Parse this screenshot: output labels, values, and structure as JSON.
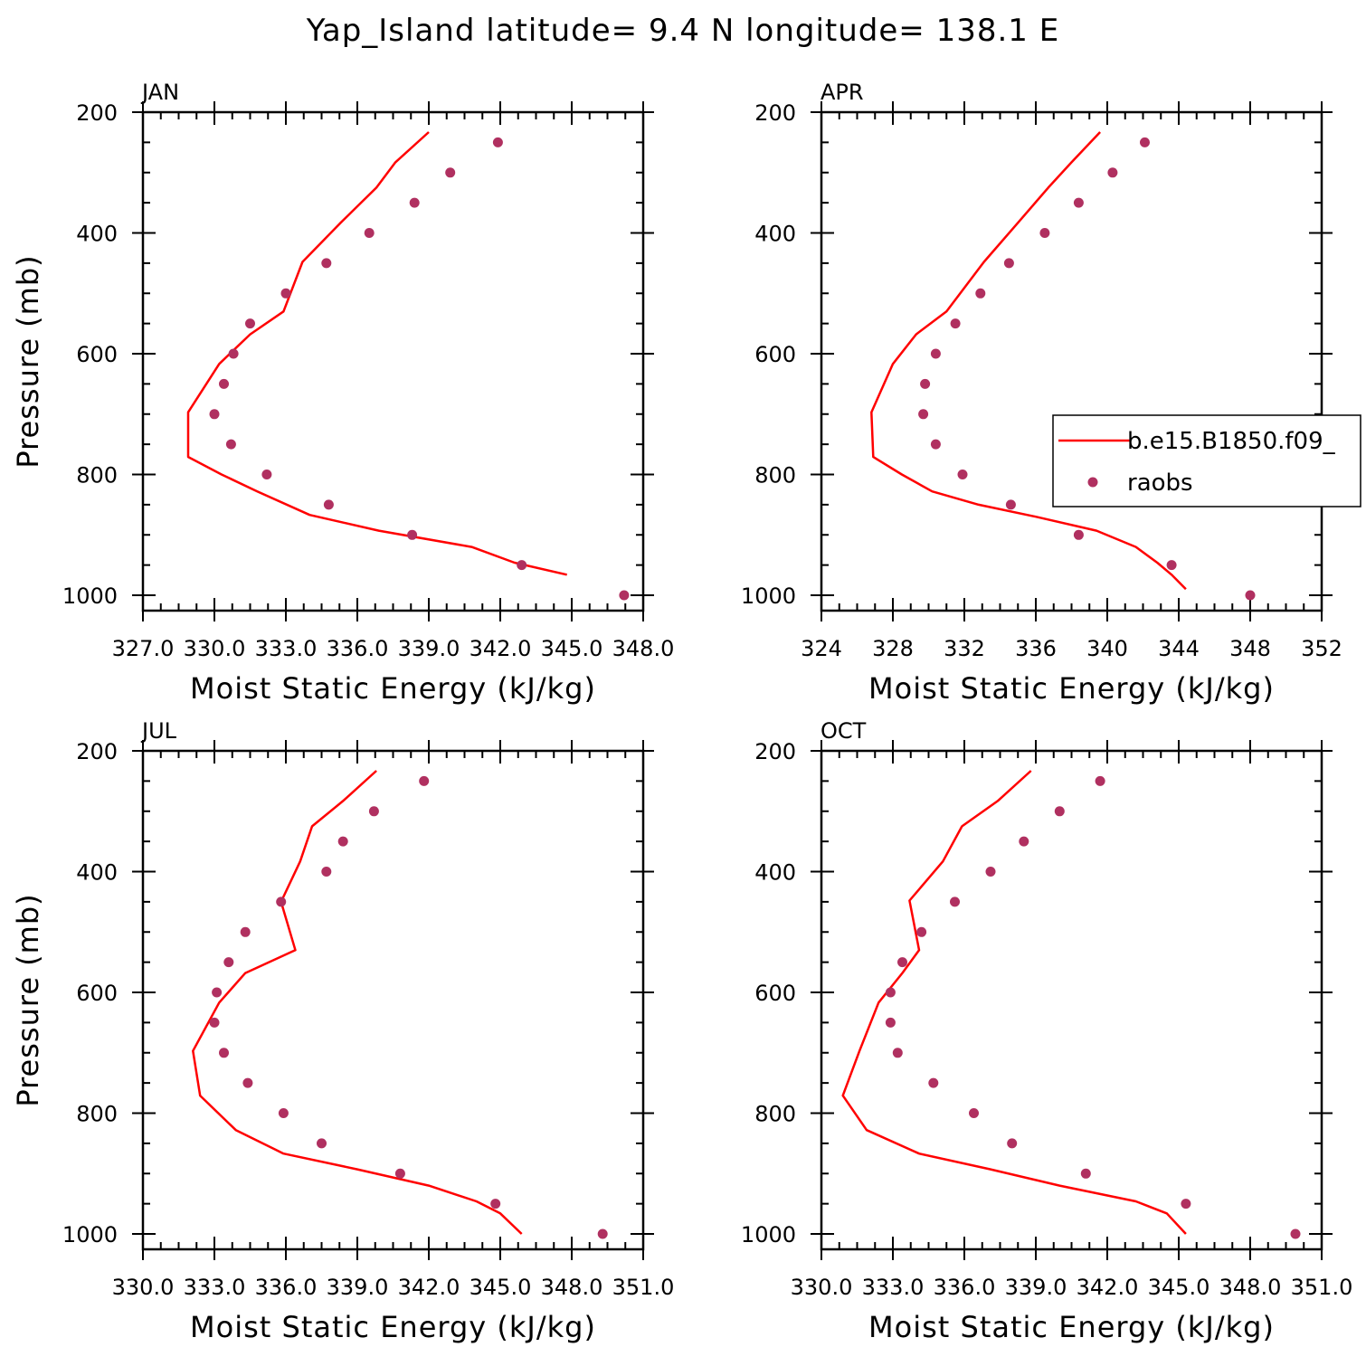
{
  "figure": {
    "title": "Yap_Island  latitude= 9.4 N longitude= 138.1 E"
  },
  "legend": {
    "model_label": "b.e15.B1850.f09_",
    "obs_label": "raobs"
  },
  "colors": {
    "model_line": "#ff0000",
    "obs_marker": "#b03060",
    "axis": "#000000"
  },
  "chart_data": [
    {
      "type": "line",
      "title": "JAN",
      "xlabel": "Moist Static Energy (kJ/kg)",
      "ylabel": "Pressure (mb)",
      "xlim": [
        327.0,
        348.0
      ],
      "ylim": [
        1000,
        200
      ],
      "y_reversed": true,
      "xticks": [
        327.0,
        330.0,
        333.0,
        336.0,
        339.0,
        342.0,
        345.0,
        348.0
      ],
      "xtick_labels": [
        "327.0",
        "330.0",
        "333.0",
        "336.0",
        "339.0",
        "342.0",
        "345.0",
        "348.0"
      ],
      "yticks": [
        200,
        400,
        600,
        800,
        1000
      ],
      "ytick_labels": [
        "200",
        "400",
        "600",
        "800",
        "1000"
      ],
      "series": [
        {
          "name": "b.e15.B1850.f09_",
          "kind": "line",
          "x": [
            339.0,
            337.6,
            336.8,
            335.3,
            333.7,
            332.9,
            331.5,
            330.2,
            328.9,
            328.9,
            330.3,
            331.8,
            334.0,
            336.9,
            340.8,
            342.6,
            344.8
          ],
          "y": [
            233,
            283,
            325,
            383,
            448,
            530,
            568,
            617,
            697,
            771,
            800,
            828,
            867,
            893,
            920,
            946,
            966
          ]
        },
        {
          "name": "raobs",
          "kind": "scatter",
          "x": [
            341.9,
            339.9,
            338.4,
            336.5,
            334.7,
            333.0,
            331.5,
            330.8,
            330.4,
            330.0,
            330.7,
            332.2,
            334.8,
            338.3,
            342.9,
            347.2
          ],
          "y": [
            250,
            300,
            350,
            400,
            450,
            500,
            550,
            600,
            650,
            700,
            750,
            800,
            850,
            900,
            950,
            1000
          ]
        }
      ]
    },
    {
      "type": "line",
      "title": "APR",
      "xlabel": "Moist Static Energy (kJ/kg)",
      "ylabel": "Pressure (mb)",
      "xlim": [
        324,
        352
      ],
      "ylim": [
        1000,
        200
      ],
      "y_reversed": true,
      "xticks": [
        324,
        328,
        332,
        336,
        340,
        344,
        348,
        352
      ],
      "xtick_labels": [
        "324",
        "328",
        "332",
        "336",
        "340",
        "344",
        "348",
        "352"
      ],
      "yticks": [
        200,
        400,
        600,
        800,
        1000
      ],
      "ytick_labels": [
        "200",
        "400",
        "600",
        "800",
        "1000"
      ],
      "series": [
        {
          "name": "b.e15.B1850.f09_",
          "kind": "line",
          "x": [
            339.6,
            338.0,
            336.7,
            335.0,
            333.1,
            331.0,
            329.3,
            328.0,
            326.8,
            326.9,
            328.5,
            330.2,
            332.8,
            336.0,
            339.4,
            341.6,
            342.8,
            343.6,
            344.4
          ],
          "y": [
            233,
            283,
            325,
            383,
            448,
            530,
            568,
            617,
            697,
            771,
            800,
            828,
            850,
            870,
            893,
            920,
            946,
            966,
            990
          ]
        },
        {
          "name": "raobs",
          "kind": "scatter",
          "x": [
            342.1,
            340.3,
            338.4,
            336.5,
            334.5,
            332.9,
            331.5,
            330.4,
            329.8,
            329.7,
            330.4,
            331.9,
            334.6,
            338.4,
            343.6,
            348.0
          ],
          "y": [
            250,
            300,
            350,
            400,
            450,
            500,
            550,
            600,
            650,
            700,
            750,
            800,
            850,
            900,
            950,
            1000
          ]
        }
      ]
    },
    {
      "type": "line",
      "title": "JUL",
      "xlabel": "Moist Static Energy (kJ/kg)",
      "ylabel": "Pressure (mb)",
      "xlim": [
        330.0,
        351.0
      ],
      "ylim": [
        1000,
        200
      ],
      "y_reversed": true,
      "xticks": [
        330.0,
        333.0,
        336.0,
        339.0,
        342.0,
        345.0,
        348.0,
        351.0
      ],
      "xtick_labels": [
        "330.0",
        "333.0",
        "336.0",
        "339.0",
        "342.0",
        "345.0",
        "348.0",
        "351.0"
      ],
      "yticks": [
        200,
        400,
        600,
        800,
        1000
      ],
      "ytick_labels": [
        "200",
        "400",
        "600",
        "800",
        "1000"
      ],
      "series": [
        {
          "name": "b.e15.B1850.f09_",
          "kind": "line",
          "x": [
            339.8,
            338.4,
            337.1,
            336.6,
            335.8,
            336.4,
            334.3,
            333.2,
            332.1,
            332.4,
            333.9,
            335.9,
            339.0,
            342.0,
            344.0,
            345.0,
            345.9
          ],
          "y": [
            233,
            283,
            325,
            383,
            450,
            530,
            568,
            617,
            697,
            771,
            828,
            867,
            893,
            920,
            946,
            966,
            1000
          ]
        },
        {
          "name": "raobs",
          "kind": "scatter",
          "x": [
            341.8,
            339.7,
            338.4,
            337.7,
            335.8,
            334.3,
            333.6,
            333.1,
            333.0,
            333.4,
            334.4,
            335.9,
            337.5,
            340.8,
            344.8,
            349.3
          ],
          "y": [
            250,
            300,
            350,
            400,
            450,
            500,
            550,
            600,
            650,
            700,
            750,
            800,
            850,
            900,
            950,
            1000
          ]
        }
      ]
    },
    {
      "type": "line",
      "title": "OCT",
      "xlabel": "Moist Static Energy (kJ/kg)",
      "ylabel": "Pressure (mb)",
      "xlim": [
        330.0,
        351.0
      ],
      "ylim": [
        1000,
        200
      ],
      "y_reversed": true,
      "xticks": [
        330.0,
        333.0,
        336.0,
        339.0,
        342.0,
        345.0,
        348.0,
        351.0
      ],
      "xtick_labels": [
        "330.0",
        "333.0",
        "336.0",
        "339.0",
        "342.0",
        "345.0",
        "348.0",
        "351.0"
      ],
      "yticks": [
        200,
        400,
        600,
        800,
        1000
      ],
      "ytick_labels": [
        "200",
        "400",
        "600",
        "800",
        "1000"
      ],
      "series": [
        {
          "name": "b.e15.B1850.f09_",
          "kind": "line",
          "x": [
            338.8,
            337.4,
            335.9,
            335.1,
            333.7,
            334.1,
            333.4,
            332.4,
            331.6,
            330.9,
            331.9,
            334.1,
            337.1,
            340.0,
            343.2,
            344.5,
            345.3
          ],
          "y": [
            233,
            283,
            325,
            383,
            448,
            530,
            568,
            617,
            697,
            771,
            828,
            867,
            893,
            920,
            946,
            966,
            1000
          ]
        },
        {
          "name": "raobs",
          "kind": "scatter",
          "x": [
            341.7,
            340.0,
            338.5,
            337.1,
            335.6,
            334.2,
            333.4,
            332.9,
            332.9,
            333.2,
            334.7,
            336.4,
            338.0,
            341.1,
            345.3,
            349.9
          ],
          "y": [
            250,
            300,
            350,
            400,
            450,
            500,
            550,
            600,
            650,
            700,
            750,
            800,
            850,
            900,
            950,
            1000
          ]
        }
      ]
    }
  ]
}
